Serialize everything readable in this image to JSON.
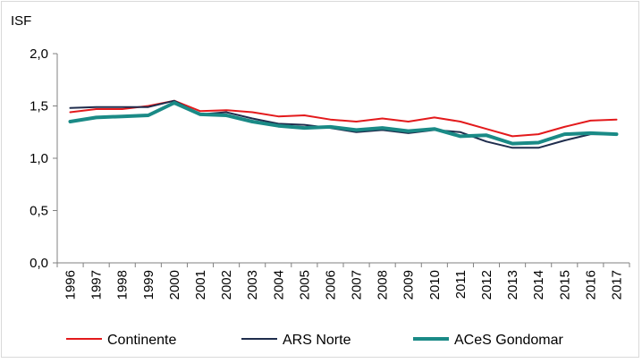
{
  "chart_data": {
    "type": "line",
    "ylabel": "ISF",
    "ylim": [
      0,
      2.0
    ],
    "y_ticks": [
      "0,0",
      "0,5",
      "1,0",
      "1,5",
      "2,0"
    ],
    "y_tick_values": [
      0,
      0.5,
      1.0,
      1.5,
      2.0
    ],
    "grid": false,
    "legend_position": "bottom",
    "categories": [
      "1996",
      "1997",
      "1998",
      "1999",
      "2000",
      "2001",
      "2002",
      "2003",
      "2004",
      "2005",
      "2006",
      "2007",
      "2008",
      "2009",
      "2010",
      "2011",
      "2012",
      "2013",
      "2014",
      "2015",
      "2016",
      "2017"
    ],
    "series": [
      {
        "name": "Continente",
        "color": "#e31a1c",
        "values": [
          1.44,
          1.47,
          1.47,
          1.5,
          1.55,
          1.45,
          1.46,
          1.44,
          1.4,
          1.41,
          1.37,
          1.35,
          1.38,
          1.35,
          1.39,
          1.35,
          1.28,
          1.21,
          1.23,
          1.3,
          1.36,
          1.37
        ]
      },
      {
        "name": "ARS Norte",
        "color": "#1f2d4d",
        "values": [
          1.48,
          1.49,
          1.49,
          1.49,
          1.55,
          1.42,
          1.44,
          1.38,
          1.33,
          1.32,
          1.29,
          1.25,
          1.27,
          1.24,
          1.27,
          1.25,
          1.16,
          1.1,
          1.1,
          1.17,
          1.23,
          1.23
        ]
      },
      {
        "name": "ACeS Gondomar",
        "color": "#1a8a86",
        "values": [
          1.35,
          1.39,
          1.4,
          1.41,
          1.53,
          1.42,
          1.41,
          1.35,
          1.31,
          1.29,
          1.3,
          1.27,
          1.29,
          1.26,
          1.28,
          1.21,
          1.22,
          1.14,
          1.15,
          1.23,
          1.24,
          1.23
        ]
      }
    ]
  }
}
